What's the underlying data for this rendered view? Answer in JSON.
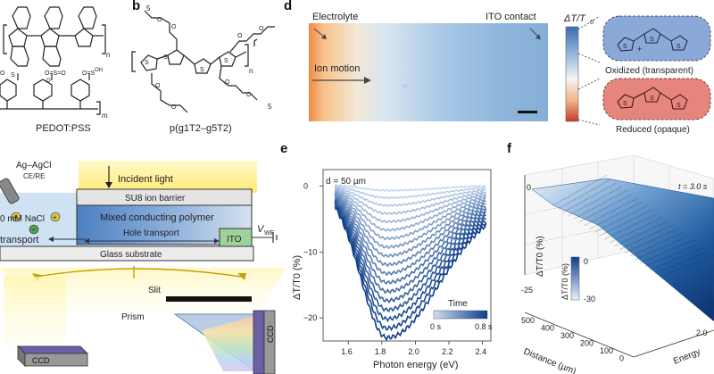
{
  "panel_labels": {
    "b": "b",
    "d": "d",
    "e": "e",
    "f": "f"
  },
  "panel_a": {
    "name": "PEDOT:PSS",
    "subscript_n": "n",
    "subscript_m": "m"
  },
  "panel_b": {
    "name": "p(g1T2–g5T2)",
    "subscript_n": "n",
    "repeat_5": "5"
  },
  "panel_c": {
    "electrode_label": "Ag–AgCl",
    "electrode_sub": "CE/RE",
    "electrolyte": "0 mM NaCl",
    "incident_light": "Incident light",
    "barrier": "SU8 ion barrier",
    "polymer": "Mixed conducting polymer",
    "hole_transport": "Hole transport",
    "ion_transport": "transport",
    "ito": "ITO",
    "vwe": "V",
    "vwe_sub": "WE",
    "substrate": "Glass substrate",
    "slit": "Slit",
    "prism": "Prism",
    "ccd_left": "CCD",
    "ccd_right": "CCD"
  },
  "panel_d": {
    "electrolyte": "Electrolyte",
    "ito_contact": "ITO contact",
    "ion_motion": "Ion motion",
    "colorbar_label": "ΔT/T",
    "colorbar_sub": "0",
    "oxidized": "Oxidized (transparent)",
    "reduced": "Reduced (opaque)"
  },
  "chart_data": [
    {
      "type": "line",
      "panel": "e",
      "annotation": "d = 50 µm",
      "xlabel": "Photon energy (eV)",
      "ylabel": "ΔT/T0 (%)",
      "xlim": [
        1.45,
        2.45
      ],
      "ylim": [
        -23.5,
        2.5
      ],
      "xticks": [
        "1.6",
        "1.8",
        "2.0",
        "2.2",
        "2.4"
      ],
      "yticks": [
        "0",
        "-10",
        "-20"
      ],
      "legend_title": "Time",
      "legend_min": "0 s",
      "legend_max": "0.8 s",
      "series_summary": {
        "count": 18,
        "min_trough": -23,
        "trough_energy_eV": 1.83,
        "start_value": 0,
        "end_value_2p4": -2
      }
    },
    {
      "type": "surface",
      "panel": "f",
      "annotation": "t = 3.0 s",
      "xlabel": "Distance (µm)",
      "ylabel": "ΔT/T0 (%)",
      "zlabel": "Energy",
      "xticks": [
        "0",
        "100",
        "200",
        "300",
        "400",
        "500"
      ],
      "yticks": [
        "0",
        "-25"
      ],
      "zticks": [
        "2.0"
      ],
      "colorbar_label": "ΔT/T0 (%)",
      "colorbar_max": "0",
      "colorbar_min": "-30"
    }
  ]
}
